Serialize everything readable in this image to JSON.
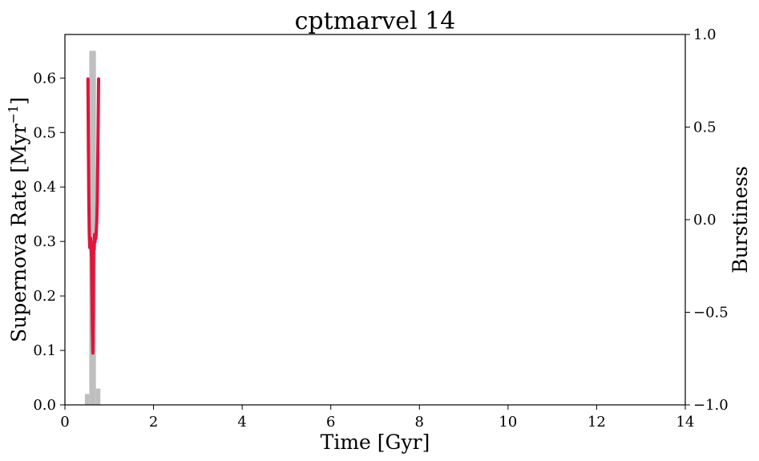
{
  "chart_data": {
    "type": "bar",
    "title": "cptmarvel 14",
    "xlabel": "Time [Gyr]",
    "ylabel": "Supernova Rate [Myr",
    "ylabel_superscript": "−1",
    "ylabel_suffix": "]",
    "y2label": "Burstiness",
    "xlim": [
      0,
      14
    ],
    "ylim": [
      0,
      0.68
    ],
    "y2lim": [
      -1.0,
      1.0
    ],
    "xticks": [
      0,
      2,
      4,
      6,
      8,
      10,
      12,
      14
    ],
    "yticks": [
      0.0,
      0.1,
      0.2,
      0.3,
      0.4,
      0.5,
      0.6
    ],
    "y2ticks": [
      -1.0,
      -0.5,
      0.0,
      0.5,
      1.0
    ],
    "y2tick_labels": [
      "−1.0",
      "−0.5",
      "0.0",
      "0.5",
      "1.0"
    ],
    "grid": false,
    "histogram": {
      "color": "#bfbfbf",
      "bins": [
        {
          "x0": 0.45,
          "x1": 0.55,
          "value": 0.02
        },
        {
          "x0": 0.55,
          "x1": 0.7,
          "value": 0.65
        },
        {
          "x0": 0.7,
          "x1": 0.8,
          "value": 0.03
        }
      ]
    },
    "series": [
      {
        "axis": "right",
        "color": "#e0143c",
        "points": [
          [
            0.52,
            0.76
          ],
          [
            0.53,
            0.4
          ],
          [
            0.54,
            0.1
          ],
          [
            0.55,
            -0.08
          ],
          [
            0.56,
            -0.15
          ],
          [
            0.58,
            -0.1
          ],
          [
            0.6,
            -0.2
          ],
          [
            0.61,
            -0.4
          ],
          [
            0.62,
            -0.6
          ],
          [
            0.63,
            -0.72
          ],
          [
            0.64,
            -0.5
          ],
          [
            0.645,
            -0.2
          ],
          [
            0.65,
            -0.12
          ],
          [
            0.66,
            -0.16
          ],
          [
            0.67,
            -0.08
          ],
          [
            0.68,
            -0.12
          ],
          [
            0.69,
            -0.08
          ],
          [
            0.7,
            -0.1
          ],
          [
            0.72,
            0.0
          ],
          [
            0.73,
            0.1
          ],
          [
            0.74,
            0.3
          ],
          [
            0.75,
            0.5
          ],
          [
            0.76,
            0.76
          ]
        ]
      }
    ]
  }
}
